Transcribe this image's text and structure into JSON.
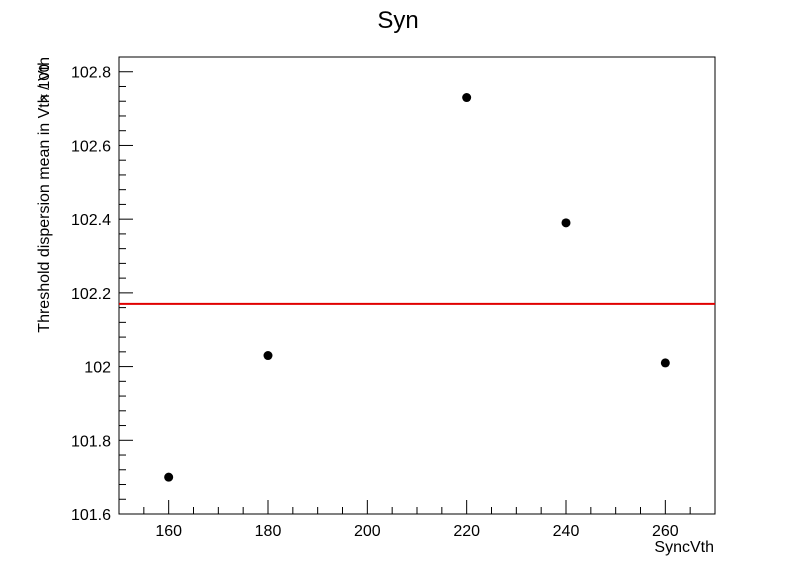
{
  "chart_data": {
    "type": "scatter",
    "title": "Syn",
    "xlabel": "SyncVth",
    "ylabel": "Threshold dispersion mean in Vth / Vth",
    "y_multiplier": "× 100",
    "xlim": [
      150,
      270
    ],
    "ylim": [
      101.6,
      102.84
    ],
    "x_ticks": [
      160,
      180,
      200,
      220,
      240,
      260
    ],
    "x_tick_labels": [
      "160",
      "180",
      "200",
      "220",
      "240",
      "260"
    ],
    "y_ticks": [
      101.6,
      101.8,
      102.0,
      102.2,
      102.4,
      102.6,
      102.8
    ],
    "y_tick_labels": [
      "101.6",
      "101.8",
      "102",
      "102.2",
      "102.4",
      "102.6",
      "102.8"
    ],
    "points": [
      {
        "x": 160,
        "y": 101.7
      },
      {
        "x": 180,
        "y": 102.03
      },
      {
        "x": 220,
        "y": 102.73
      },
      {
        "x": 240,
        "y": 102.39
      },
      {
        "x": 260,
        "y": 102.01
      }
    ],
    "fit_line": {
      "y": 102.17,
      "color": "#e00000"
    },
    "marker_color": "#000000",
    "grid": false,
    "legend": "none"
  }
}
